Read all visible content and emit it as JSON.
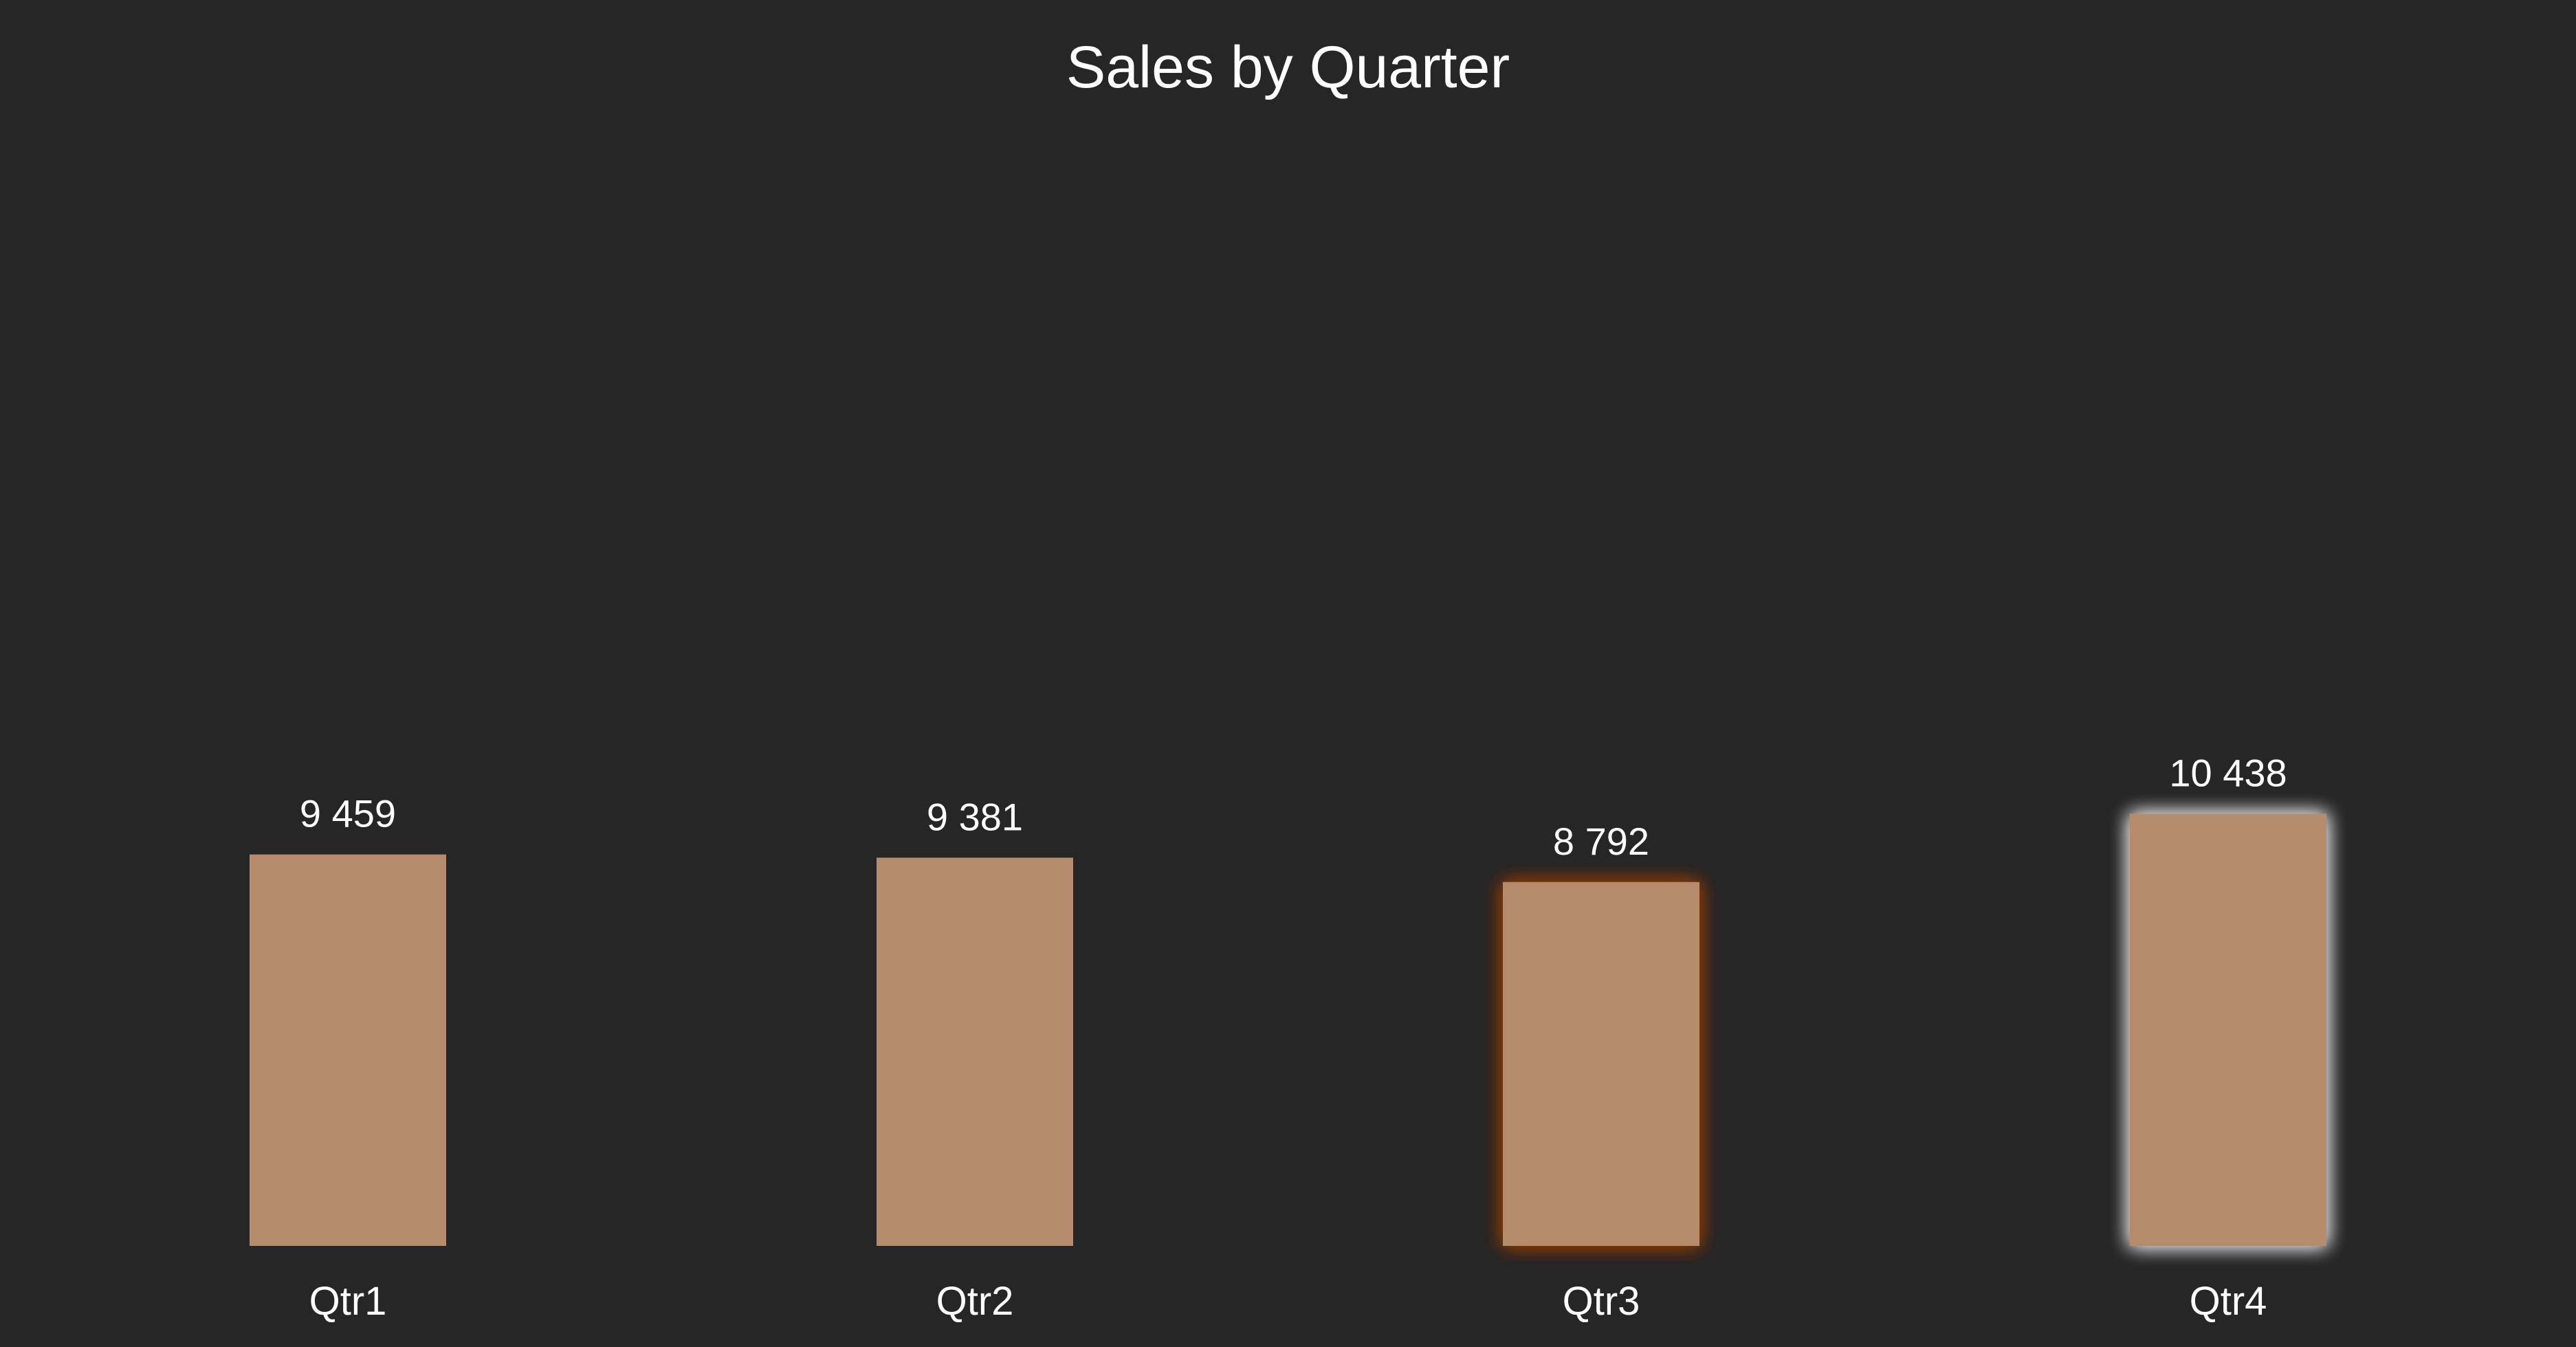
{
  "chart_data": {
    "type": "bar",
    "title": "Sales by Quarter",
    "categories": [
      "Qtr1",
      "Qtr2",
      "Qtr3",
      "Qtr4"
    ],
    "values": [
      9459,
      9381,
      8792,
      10438
    ],
    "data_labels": [
      "9 459",
      "9 381",
      "8 792",
      "10 438"
    ],
    "ylim": [
      0,
      15000
    ],
    "grid": false,
    "legend": "none",
    "xlabel": "",
    "ylabel": "",
    "colors": {
      "background": "#262626",
      "bar": "#b58b6c",
      "text": "#ffffff",
      "glow_qtr3": "#8a3a0c",
      "glow_qtr4": "#d9d9d9"
    },
    "highlights": [
      "none",
      "none",
      "orange-glow",
      "white-glow"
    ]
  }
}
